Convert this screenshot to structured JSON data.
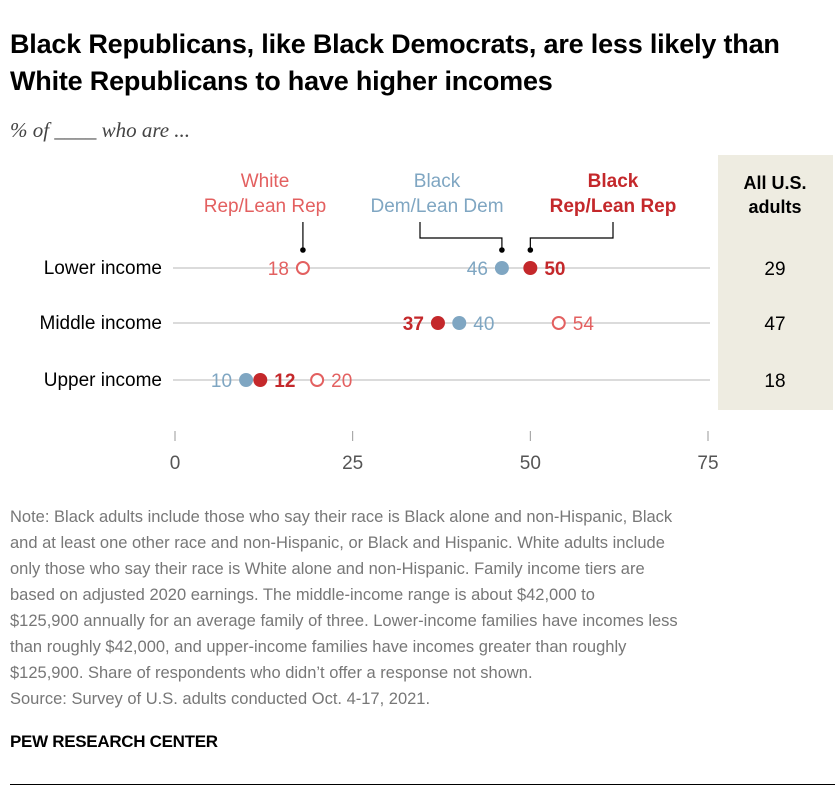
{
  "title": "Black Republicans, like Black Democrats, are less likely than White Republicans to have higher incomes",
  "subtitle": "% of ____ who are ...",
  "chart_data": {
    "type": "dot",
    "categories": [
      "Lower income",
      "Middle income",
      "Upper income"
    ],
    "series": [
      {
        "name": "White Rep/Lean Rep",
        "name_lines": [
          "White",
          "Rep/Lean Rep"
        ],
        "color": "#e36060",
        "marker": "open-circle",
        "values": [
          18,
          54,
          20
        ]
      },
      {
        "name": "Black Dem/Lean Dem",
        "name_lines": [
          "Black",
          "Dem/Lean Dem"
        ],
        "color": "#7fa6c2",
        "marker": "filled-circle",
        "values": [
          46,
          40,
          10
        ]
      },
      {
        "name": "Black Rep/Lean Rep",
        "name_lines": [
          "Black",
          "Rep/Lean Rep"
        ],
        "color": "#c4282b",
        "marker": "filled-circle",
        "values": [
          50,
          37,
          12
        ]
      }
    ],
    "side_column": {
      "header_lines": [
        "All U.S.",
        "adults"
      ],
      "values": [
        29,
        47,
        18
      ],
      "background": "#eeece1"
    },
    "xlim": [
      0,
      75
    ],
    "xticks": [
      0,
      25,
      50,
      75
    ],
    "grid": false
  },
  "note_lines": [
    "Note: Black adults include those who say their race is Black alone and non-Hispanic, Black",
    "and at least one other race and non-Hispanic, or Black and Hispanic. White adults include",
    "only those who say their race is White alone and non-Hispanic. Family income tiers are",
    "based on adjusted 2020 earnings. The middle-income range is about $42,000 to",
    "$125,900 annually for an average family of three. Lower-income families have incomes less",
    "than roughly $42,000, and upper-income families have incomes greater than roughly",
    "$125,900. Share of respondents who didn’t offer a response not shown.",
    "Source: Survey of U.S. adults conducted Oct. 4-17, 2021."
  ],
  "brand": "PEW RESEARCH CENTER"
}
